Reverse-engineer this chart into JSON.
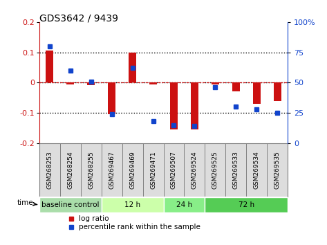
{
  "title": "GDS3642 / 9439",
  "samples": [
    "GSM268253",
    "GSM268254",
    "GSM268255",
    "GSM269467",
    "GSM269469",
    "GSM269471",
    "GSM269507",
    "GSM269524",
    "GSM269525",
    "GSM269533",
    "GSM269534",
    "GSM269535"
  ],
  "log_ratio": [
    0.105,
    -0.005,
    -0.008,
    -0.105,
    0.098,
    -0.005,
    -0.155,
    -0.155,
    -0.005,
    -0.03,
    -0.07,
    -0.06
  ],
  "percentile_rank": [
    80,
    60,
    51,
    24,
    62,
    18,
    15,
    14,
    46,
    30,
    28,
    25
  ],
  "bar_color": "#cc1111",
  "dot_color": "#1144cc",
  "ylim": [
    -0.2,
    0.2
  ],
  "y2lim": [
    0,
    100
  ],
  "yticks": [
    -0.2,
    -0.1,
    0.0,
    0.1,
    0.2
  ],
  "y2ticks": [
    0,
    25,
    50,
    75,
    100
  ],
  "dotted_lines": [
    -0.1,
    0.0,
    0.1
  ],
  "groups": [
    {
      "label": "baseline control",
      "start": 0,
      "end": 3,
      "color": "#aaddaa"
    },
    {
      "label": "12 h",
      "start": 3,
      "end": 6,
      "color": "#ccffaa"
    },
    {
      "label": "24 h",
      "start": 6,
      "end": 8,
      "color": "#88ee88"
    },
    {
      "label": "72 h",
      "start": 8,
      "end": 12,
      "color": "#55cc55"
    }
  ],
  "time_label": "time",
  "legend_items": [
    {
      "label": "log ratio",
      "color": "#cc1111"
    },
    {
      "label": "percentile rank within the sample",
      "color": "#1144cc"
    }
  ]
}
